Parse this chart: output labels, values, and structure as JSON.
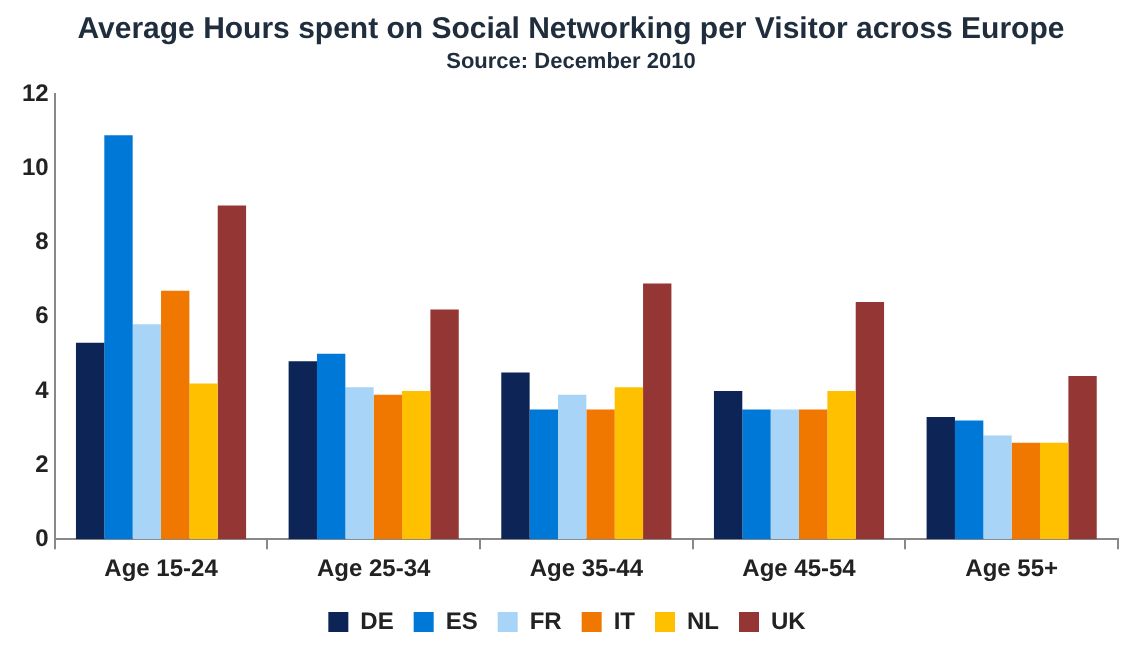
{
  "chart_data": {
    "type": "bar",
    "title": "Average Hours spent on Social Networking per Visitor across Europe",
    "subtitle": "Source: December 2010",
    "categories": [
      "Age 15-24",
      "Age 25-34",
      "Age 35-44",
      "Age 45-54",
      "Age 55+"
    ],
    "series": [
      {
        "name": "DE",
        "color": "#0c2456",
        "values": [
          5.3,
          4.8,
          4.5,
          4.0,
          3.3
        ]
      },
      {
        "name": "ES",
        "color": "#0078d7",
        "values": [
          10.9,
          5.0,
          3.5,
          3.5,
          3.2
        ]
      },
      {
        "name": "FR",
        "color": "#a8d4f8",
        "values": [
          5.8,
          4.1,
          3.9,
          3.5,
          2.8
        ]
      },
      {
        "name": "IT",
        "color": "#f07800",
        "values": [
          6.7,
          3.9,
          3.5,
          3.5,
          2.6
        ]
      },
      {
        "name": "NL",
        "color": "#ffc000",
        "values": [
          4.2,
          4.0,
          4.1,
          4.0,
          2.6
        ]
      },
      {
        "name": "UK",
        "color": "#943634",
        "values": [
          9.0,
          6.2,
          6.9,
          6.4,
          4.4
        ]
      }
    ],
    "ylim": [
      0,
      12
    ],
    "yticks": [
      0,
      2,
      4,
      6,
      8,
      10,
      12
    ],
    "grid": false,
    "legend": "bottom"
  }
}
